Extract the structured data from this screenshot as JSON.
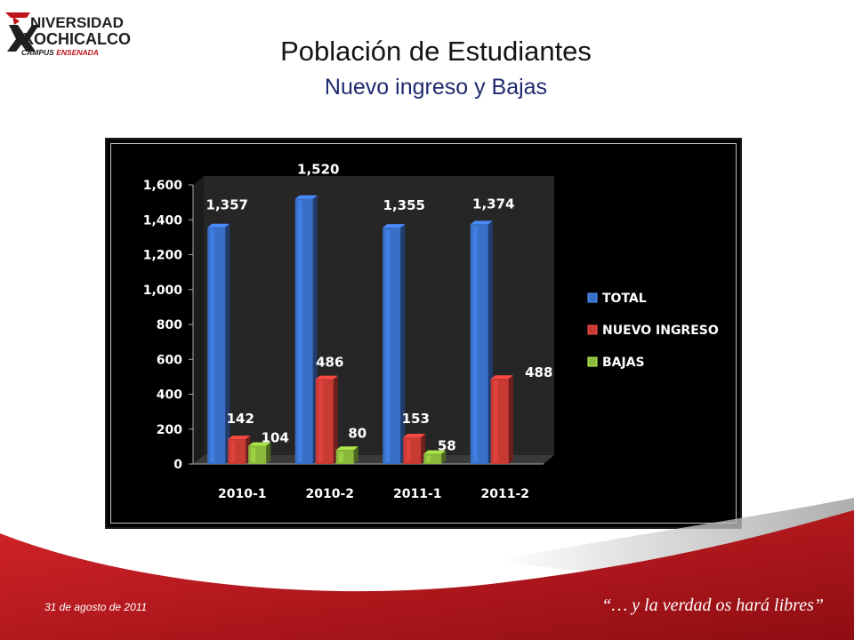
{
  "logo": {
    "line1": "NIVERSIDAD",
    "line2": "XOCHICALCO",
    "line3_a": "CAMPUS",
    "line3_b": "ENSENADA",
    "accent": "#c0141b"
  },
  "title": "Población de Estudiantes",
  "subtitle": "Nuevo ingreso y Bajas",
  "chart_data": {
    "type": "bar",
    "categories": [
      "2010-1",
      "2010-2",
      "2011-1",
      "2011-2"
    ],
    "series": [
      {
        "name": "TOTAL",
        "values": [
          1357,
          1520,
          1355,
          1374
        ],
        "labels": [
          "1,357",
          "1,520",
          "1,355",
          "1,374"
        ],
        "color": "#3a6fc8"
      },
      {
        "name": "NUEVO INGRESO",
        "values": [
          142,
          486,
          153,
          488
        ],
        "labels": [
          "142",
          "486",
          "153",
          "488"
        ],
        "color": "#c83a34"
      },
      {
        "name": "BAJAS",
        "values": [
          104,
          80,
          58,
          null
        ],
        "labels": [
          "104",
          "80",
          "58",
          ""
        ],
        "color": "#8ab83c"
      }
    ],
    "yticks": [
      "0",
      "200",
      "400",
      "600",
      "800",
      "1,000",
      "1,200",
      "1,400",
      "1,600"
    ],
    "ylim": [
      0,
      1600
    ],
    "grid": false,
    "legend": "right",
    "background": "#000000",
    "text_color": "#ffffff"
  },
  "footer": {
    "date": "31 de  agosto de 2011",
    "motto": "“… y la verdad os hará libres”"
  }
}
